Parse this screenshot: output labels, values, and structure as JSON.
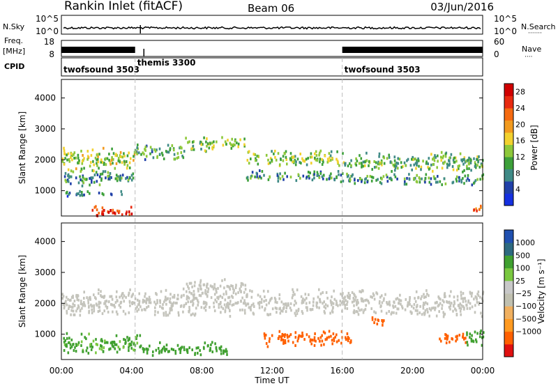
{
  "header": {
    "station": "Rankin Inlet (fitACF)",
    "beam": "Beam 06",
    "date": "03/Jun/2016"
  },
  "noise_panel": {
    "left_label": "N.Sky",
    "right_label": "N.Search",
    "left_ticks": [
      "10^5",
      "10^0"
    ],
    "right_ticks": [
      "10^5",
      "10^0"
    ]
  },
  "freq_panel": {
    "left_label": "Freq.",
    "left_unit": "[MHz]",
    "right_label": "Nave",
    "left_ticks": [
      "18",
      "8"
    ],
    "right_ticks": [
      "60",
      "0"
    ]
  },
  "cpid_panel": {
    "label": "CPID",
    "segments": [
      {
        "name": "twofsound 3503",
        "start_h": 0,
        "end_h": 4.2
      },
      {
        "name": "themis 3300",
        "start_h": 4.2,
        "end_h": 16
      },
      {
        "name": "twofsound 3503",
        "start_h": 16,
        "end_h": 24
      }
    ]
  },
  "colors": {
    "power_scale": [
      "#1530e0",
      "#2040a8",
      "#3f8a86",
      "#3da03a",
      "#8ec83a",
      "#f2d12e",
      "#f29a1e",
      "#f56a10",
      "#e82a10",
      "#d00000"
    ],
    "velocity_scale": [
      "#e01010",
      "#ff6000",
      "#ff9a20",
      "#f0b060",
      "#c0c0b0",
      "#c8c8c8",
      "#7ac840",
      "#40a030",
      "#2d6a80",
      "#2050b0"
    ],
    "ground_scatter": "#c4c4bc",
    "axis": "#000000",
    "dashed_marker": "#bbbbbb"
  },
  "x_axis": {
    "label": "Time UT",
    "ticks": [
      "00:00",
      "04:00",
      "08:00",
      "12:00",
      "16:00",
      "20:00",
      "00:00"
    ]
  },
  "chart_data": [
    {
      "type": "heatmap",
      "panel": "power",
      "ylabel": "Slant Range [km]",
      "yticks": [
        1000,
        2000,
        3000,
        4000
      ],
      "ylim": [
        180,
        4600
      ],
      "xlim_hours": [
        0,
        24
      ],
      "colorbar": {
        "label": "Power [dB]",
        "ticks": [
          "28",
          "24",
          "20",
          "16",
          "12",
          "8",
          "4"
        ],
        "range": [
          0,
          30
        ]
      },
      "bands": [
        {
          "t_start": 0.0,
          "t_end": 4.2,
          "r_center": 2050,
          "r_width": 520,
          "power": 14
        },
        {
          "t_start": 0.0,
          "t_end": 4.2,
          "r_center": 1450,
          "r_width": 350,
          "power": 9
        },
        {
          "t_start": 0.0,
          "t_end": 3.5,
          "r_center": 950,
          "r_width": 120,
          "power": 7
        },
        {
          "t_start": 4.2,
          "t_end": 7.0,
          "r_center": 2300,
          "r_width": 350,
          "power": 10
        },
        {
          "t_start": 7.0,
          "t_end": 10.5,
          "r_center": 2550,
          "r_width": 300,
          "power": 13
        },
        {
          "t_start": 10.5,
          "t_end": 16.0,
          "r_center": 2100,
          "r_width": 350,
          "power": 13
        },
        {
          "t_start": 10.5,
          "t_end": 16.0,
          "r_center": 1500,
          "r_width": 250,
          "power": 9
        },
        {
          "t_start": 16.0,
          "t_end": 24.0,
          "r_center": 1950,
          "r_width": 450,
          "power": 11
        },
        {
          "t_start": 16.0,
          "t_end": 24.0,
          "r_center": 1400,
          "r_width": 250,
          "power": 9
        },
        {
          "t_start": 1.5,
          "t_end": 4.0,
          "r_center": 350,
          "r_width": 250,
          "power": 26
        },
        {
          "t_start": 23.4,
          "t_end": 24.0,
          "r_center": 450,
          "r_width": 250,
          "power": 22
        }
      ]
    },
    {
      "type": "heatmap",
      "panel": "velocity",
      "ylabel": "Slant Range [km]",
      "yticks": [
        1000,
        2000,
        3000,
        4000
      ],
      "ylim": [
        180,
        4600
      ],
      "xlim_hours": [
        0,
        24
      ],
      "colorbar": {
        "label": "Velocity [m s⁻¹]",
        "ticks": [
          "1000",
          "500",
          "100",
          "25",
          "−25",
          "−100",
          "−500",
          "−1000"
        ]
      },
      "bands": [
        {
          "t_start": 0.0,
          "t_end": 24.0,
          "r_center": 2050,
          "r_width": 600,
          "velocity": 0,
          "ground_scatter": true
        },
        {
          "t_start": 7.0,
          "t_end": 10.5,
          "r_center": 2550,
          "r_width": 350,
          "velocity": 0,
          "ground_scatter": true
        },
        {
          "t_start": 0.0,
          "t_end": 4.5,
          "r_center": 750,
          "r_width": 450,
          "velocity": 150
        },
        {
          "t_start": 4.5,
          "t_end": 9.5,
          "r_center": 550,
          "r_width": 300,
          "velocity": 200
        },
        {
          "t_start": 11.5,
          "t_end": 16.5,
          "r_center": 900,
          "r_width": 350,
          "velocity": -200
        },
        {
          "t_start": 17.5,
          "t_end": 18.5,
          "r_center": 1450,
          "r_width": 200,
          "velocity": -250
        },
        {
          "t_start": 21.5,
          "t_end": 23.0,
          "r_center": 900,
          "r_width": 300,
          "velocity": -200
        },
        {
          "t_start": 23.0,
          "t_end": 24.0,
          "r_center": 900,
          "r_width": 400,
          "velocity": 400
        }
      ]
    }
  ]
}
